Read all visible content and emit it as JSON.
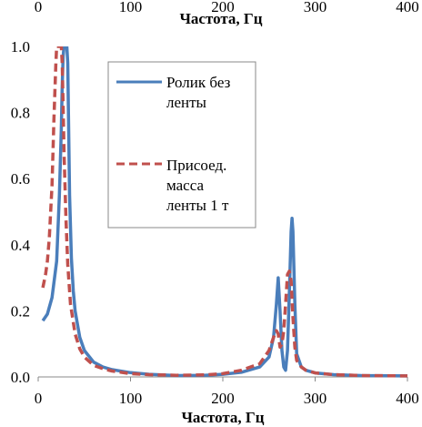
{
  "chart_data": {
    "type": "line",
    "xlabel": "Частота, Гц",
    "ylabel": "",
    "title": "",
    "xlim": [
      0,
      400
    ],
    "ylim": [
      0,
      1.0
    ],
    "x_ticks": [
      "0",
      "100",
      "200",
      "300",
      "400"
    ],
    "y_ticks": [
      "0.0",
      "0.2",
      "0.4",
      "0.6",
      "0.8",
      "1.0"
    ],
    "grid": false,
    "legend_position": "top-right",
    "series": [
      {
        "name": "Ролик без ленты",
        "color": "#4a7ebb",
        "style": "solid",
        "x": [
          5,
          10,
          15,
          20,
          23,
          25,
          26,
          27,
          28,
          29,
          30,
          31,
          32,
          33,
          34,
          36,
          38,
          40,
          45,
          50,
          60,
          70,
          80,
          100,
          120,
          150,
          180,
          200,
          220,
          240,
          250,
          255,
          258,
          260,
          262,
          264,
          266,
          268,
          270,
          272,
          274,
          275,
          276,
          278,
          280,
          285,
          290,
          300,
          320,
          350,
          400
        ],
        "y": [
          0.17,
          0.19,
          0.24,
          0.35,
          0.55,
          0.75,
          0.88,
          0.97,
          1.0,
          1.0,
          1.0,
          1.0,
          0.95,
          0.75,
          0.55,
          0.36,
          0.26,
          0.2,
          0.12,
          0.08,
          0.045,
          0.03,
          0.022,
          0.013,
          0.008,
          0.004,
          0.005,
          0.008,
          0.014,
          0.03,
          0.06,
          0.12,
          0.22,
          0.3,
          0.2,
          0.08,
          0.03,
          0.02,
          0.08,
          0.25,
          0.44,
          0.48,
          0.44,
          0.22,
          0.07,
          0.03,
          0.02,
          0.012,
          0.007,
          0.004,
          0.003
        ]
      },
      {
        "name": "Присоед. масса ленты 1 т",
        "color": "#c0504d",
        "style": "dashed",
        "x": [
          5,
          8,
          10,
          12,
          15,
          17,
          19,
          20,
          21,
          22,
          23,
          24,
          25,
          26,
          27,
          28,
          30,
          32,
          35,
          40,
          45,
          50,
          60,
          70,
          80,
          100,
          120,
          150,
          180,
          200,
          220,
          240,
          250,
          255,
          258,
          260,
          262,
          264,
          266,
          268,
          270,
          272,
          274,
          276,
          278,
          280,
          285,
          290,
          300,
          320,
          350,
          400
        ],
        "y": [
          0.27,
          0.31,
          0.35,
          0.42,
          0.58,
          0.78,
          0.94,
          1.0,
          1.0,
          1.0,
          1.0,
          1.0,
          1.0,
          0.95,
          0.82,
          0.68,
          0.48,
          0.34,
          0.22,
          0.13,
          0.085,
          0.06,
          0.035,
          0.025,
          0.018,
          0.01,
          0.007,
          0.005,
          0.006,
          0.01,
          0.02,
          0.04,
          0.08,
          0.12,
          0.14,
          0.13,
          0.09,
          0.1,
          0.14,
          0.22,
          0.31,
          0.32,
          0.29,
          0.18,
          0.09,
          0.05,
          0.03,
          0.02,
          0.012,
          0.007,
          0.004,
          0.003
        ]
      }
    ]
  }
}
